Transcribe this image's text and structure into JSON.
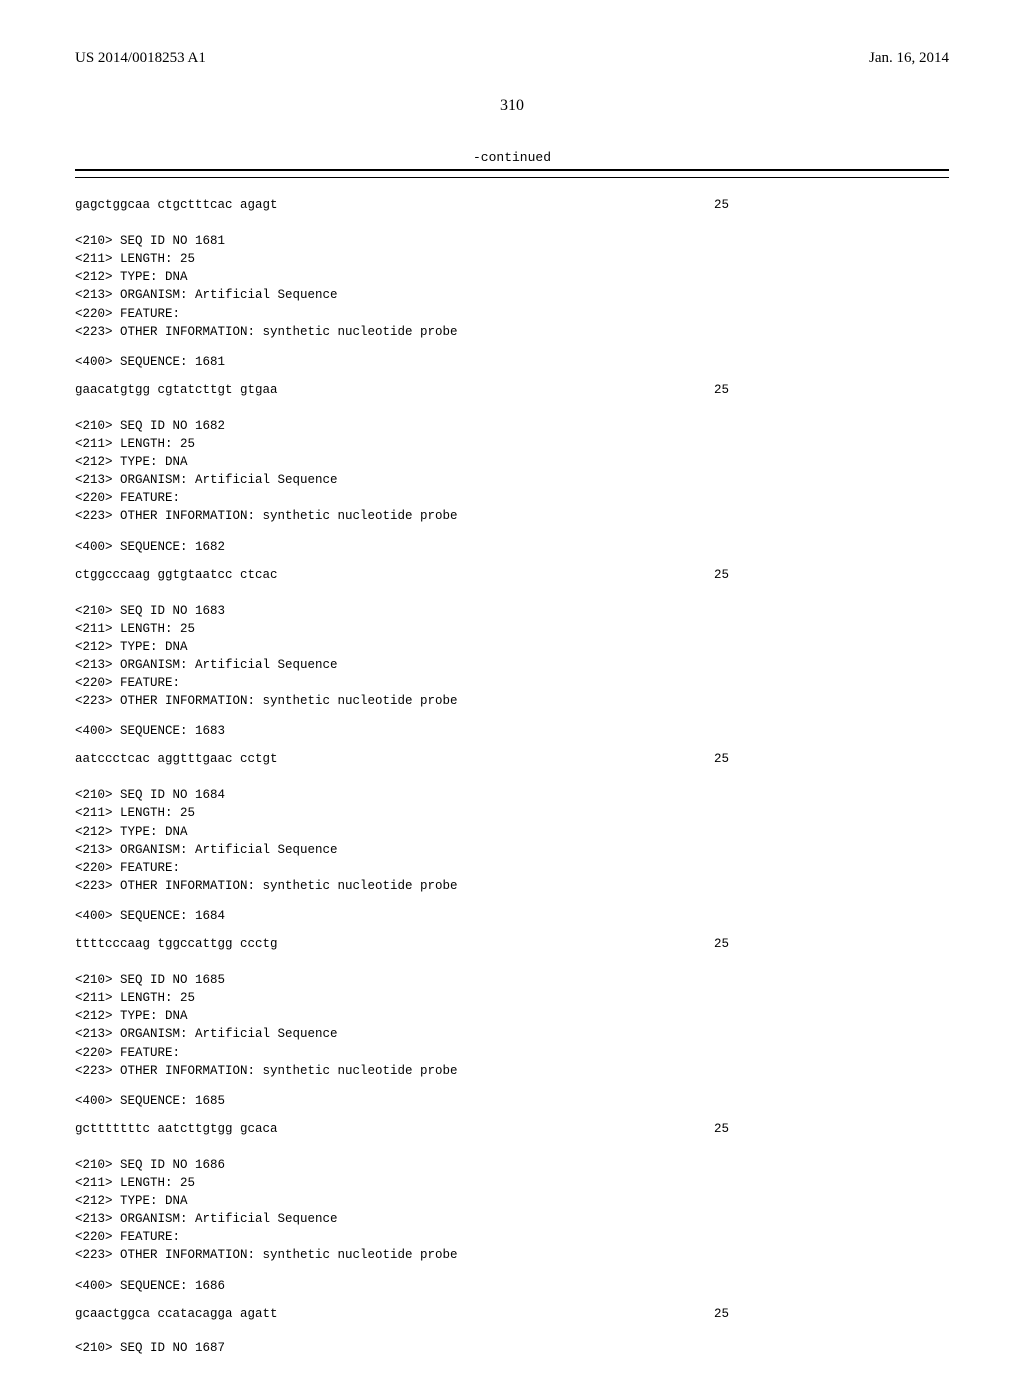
{
  "header": {
    "pub_number": "US 2014/0018253 A1",
    "pub_date": "Jan. 16, 2014"
  },
  "page_number": "310",
  "continued_label": "-continued",
  "leading_sequence": {
    "text": "gagctggcaa ctgctttcac agagt",
    "num": "25"
  },
  "blocks": [
    {
      "id": "1681",
      "length": "25",
      "type": "DNA",
      "organism": "Artificial Sequence",
      "other_info": "synthetic nucleotide probe",
      "sequence_text": "gaacatgtgg cgtatcttgt gtgaa",
      "sequence_num": "25"
    },
    {
      "id": "1682",
      "length": "25",
      "type": "DNA",
      "organism": "Artificial Sequence",
      "other_info": "synthetic nucleotide probe",
      "sequence_text": "ctggcccaag ggtgtaatcc ctcac",
      "sequence_num": "25"
    },
    {
      "id": "1683",
      "length": "25",
      "type": "DNA",
      "organism": "Artificial Sequence",
      "other_info": "synthetic nucleotide probe",
      "sequence_text": "aatccctcac aggtttgaac cctgt",
      "sequence_num": "25"
    },
    {
      "id": "1684",
      "length": "25",
      "type": "DNA",
      "organism": "Artificial Sequence",
      "other_info": "synthetic nucleotide probe",
      "sequence_text": "ttttcccaag tggccattgg ccctg",
      "sequence_num": "25"
    },
    {
      "id": "1685",
      "length": "25",
      "type": "DNA",
      "organism": "Artificial Sequence",
      "other_info": "synthetic nucleotide probe",
      "sequence_text": "gctttttttc aatcttgtgg gcaca",
      "sequence_num": "25"
    },
    {
      "id": "1686",
      "length": "25",
      "type": "DNA",
      "organism": "Artificial Sequence",
      "other_info": "synthetic nucleotide probe",
      "sequence_text": "gcaactggca ccatacagga agatt",
      "sequence_num": "25"
    }
  ],
  "trailing_id": "1687",
  "labels": {
    "l210": "<210> SEQ ID NO ",
    "l211": "<211> LENGTH: ",
    "l212": "<212> TYPE: ",
    "l213": "<213> ORGANISM: ",
    "l220": "<220> FEATURE:",
    "l223": "<223> OTHER INFORMATION: ",
    "l400": "<400> SEQUENCE: "
  }
}
